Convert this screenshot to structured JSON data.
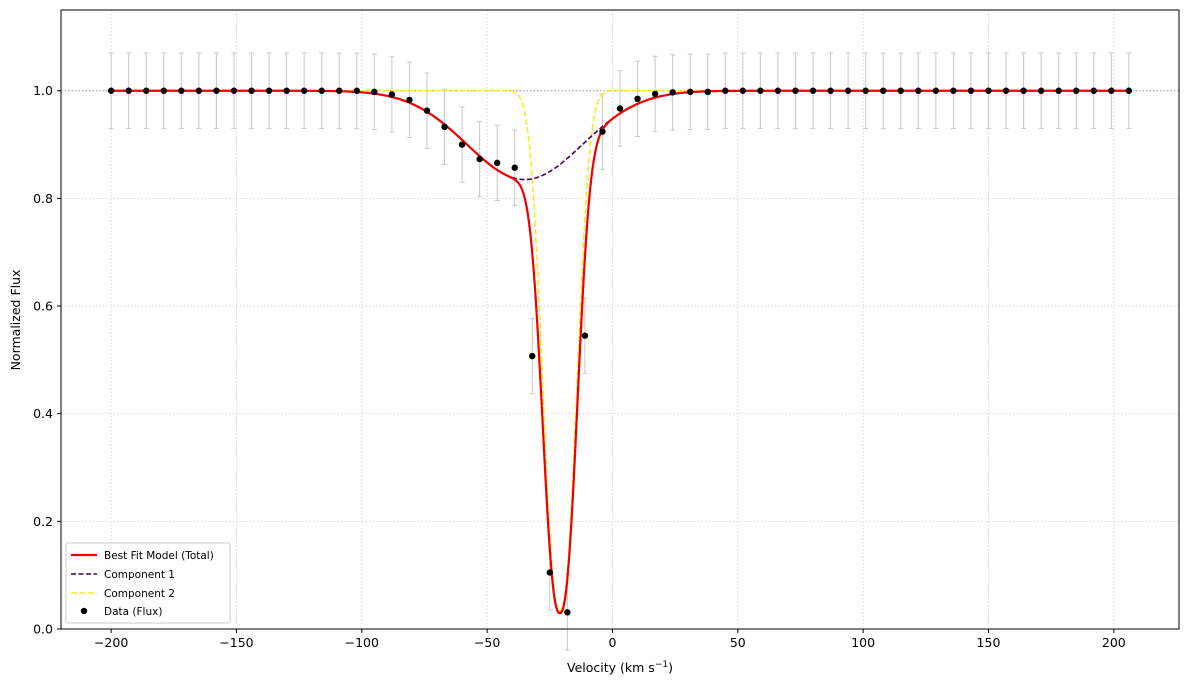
{
  "chart_data": {
    "type": "line",
    "xlabel": "Velocity (km s",
    "xlabel_sup": "−1",
    "xlabel_end": ")",
    "ylabel": "Normalized Flux",
    "xlim": [
      -220,
      226
    ],
    "ylim": [
      0.0,
      1.15
    ],
    "x_ticks": [
      -200,
      -150,
      -100,
      -50,
      0,
      50,
      100,
      150,
      200
    ],
    "x_tick_labels": [
      "−200",
      "−150",
      "−100",
      "−50",
      "0",
      "50",
      "100",
      "150",
      "200"
    ],
    "y_ticks": [
      0.0,
      0.2,
      0.4,
      0.6,
      0.8,
      1.0
    ],
    "y_tick_labels": [
      "0.0",
      "0.2",
      "0.4",
      "0.6",
      "0.8",
      "1.0"
    ],
    "grid": true,
    "continuum_line": 1.0,
    "legend_position": "lower-left",
    "colors": {
      "total": "#ee0000",
      "component1": "#440154",
      "component2": "#fde725",
      "data": "#000000",
      "errorbar": "#c8c8c8",
      "grid": "#d0d0d0"
    },
    "series": [
      {
        "name": "Best Fit Model (Total)",
        "style": "solid",
        "color": "#ee0000"
      },
      {
        "name": "Component 1",
        "style": "dashed",
        "color": "#440154",
        "params": {
          "center": -35,
          "sigma": 23,
          "depth": 0.165
        }
      },
      {
        "name": "Component 2",
        "style": "dashed",
        "color": "#fde725",
        "params": {
          "center": -21,
          "sigma": 6.5,
          "depth": 0.966,
          "power": 2.4
        }
      }
    ],
    "data_series": {
      "name": "Data (Flux)",
      "error": 0.07,
      "x": [
        -200,
        -193,
        -186,
        -179,
        -172,
        -165,
        -158,
        -151,
        -144,
        -137,
        -130,
        -123,
        -116,
        -109,
        -102,
        -95,
        -88,
        -81,
        -74,
        -67,
        -60,
        -53,
        -46,
        -39,
        -32,
        -25,
        -18,
        -11,
        -4,
        3,
        10,
        17,
        24,
        31,
        38,
        45,
        52,
        59,
        66,
        73,
        80,
        87,
        94,
        101,
        108,
        115,
        122,
        129,
        136,
        143,
        150,
        157,
        164,
        171,
        178,
        185,
        192,
        199,
        206
      ],
      "y": [
        1.0,
        1.0,
        1.0,
        1.0,
        1.0,
        1.0,
        1.0,
        1.0,
        1.0,
        1.0,
        1.0,
        1.0,
        1.0,
        1.0,
        1.0,
        0.998,
        0.993,
        0.983,
        0.963,
        0.933,
        0.9,
        0.873,
        0.866,
        0.857,
        0.507,
        0.105,
        0.031,
        0.545,
        0.924,
        0.967,
        0.985,
        0.994,
        0.997,
        0.998,
        0.998,
        1.0,
        1.0,
        1.0,
        1.0,
        1.0,
        1.0,
        1.0,
        1.0,
        1.0,
        1.0,
        1.0,
        1.0,
        1.0,
        1.0,
        1.0,
        1.0,
        1.0,
        1.0,
        1.0,
        1.0,
        1.0,
        1.0,
        1.0,
        1.0
      ]
    },
    "legend": {
      "total": "Best Fit Model (Total)",
      "component1": "Component 1",
      "component2": "Component 2",
      "data": "Data (Flux)"
    }
  }
}
